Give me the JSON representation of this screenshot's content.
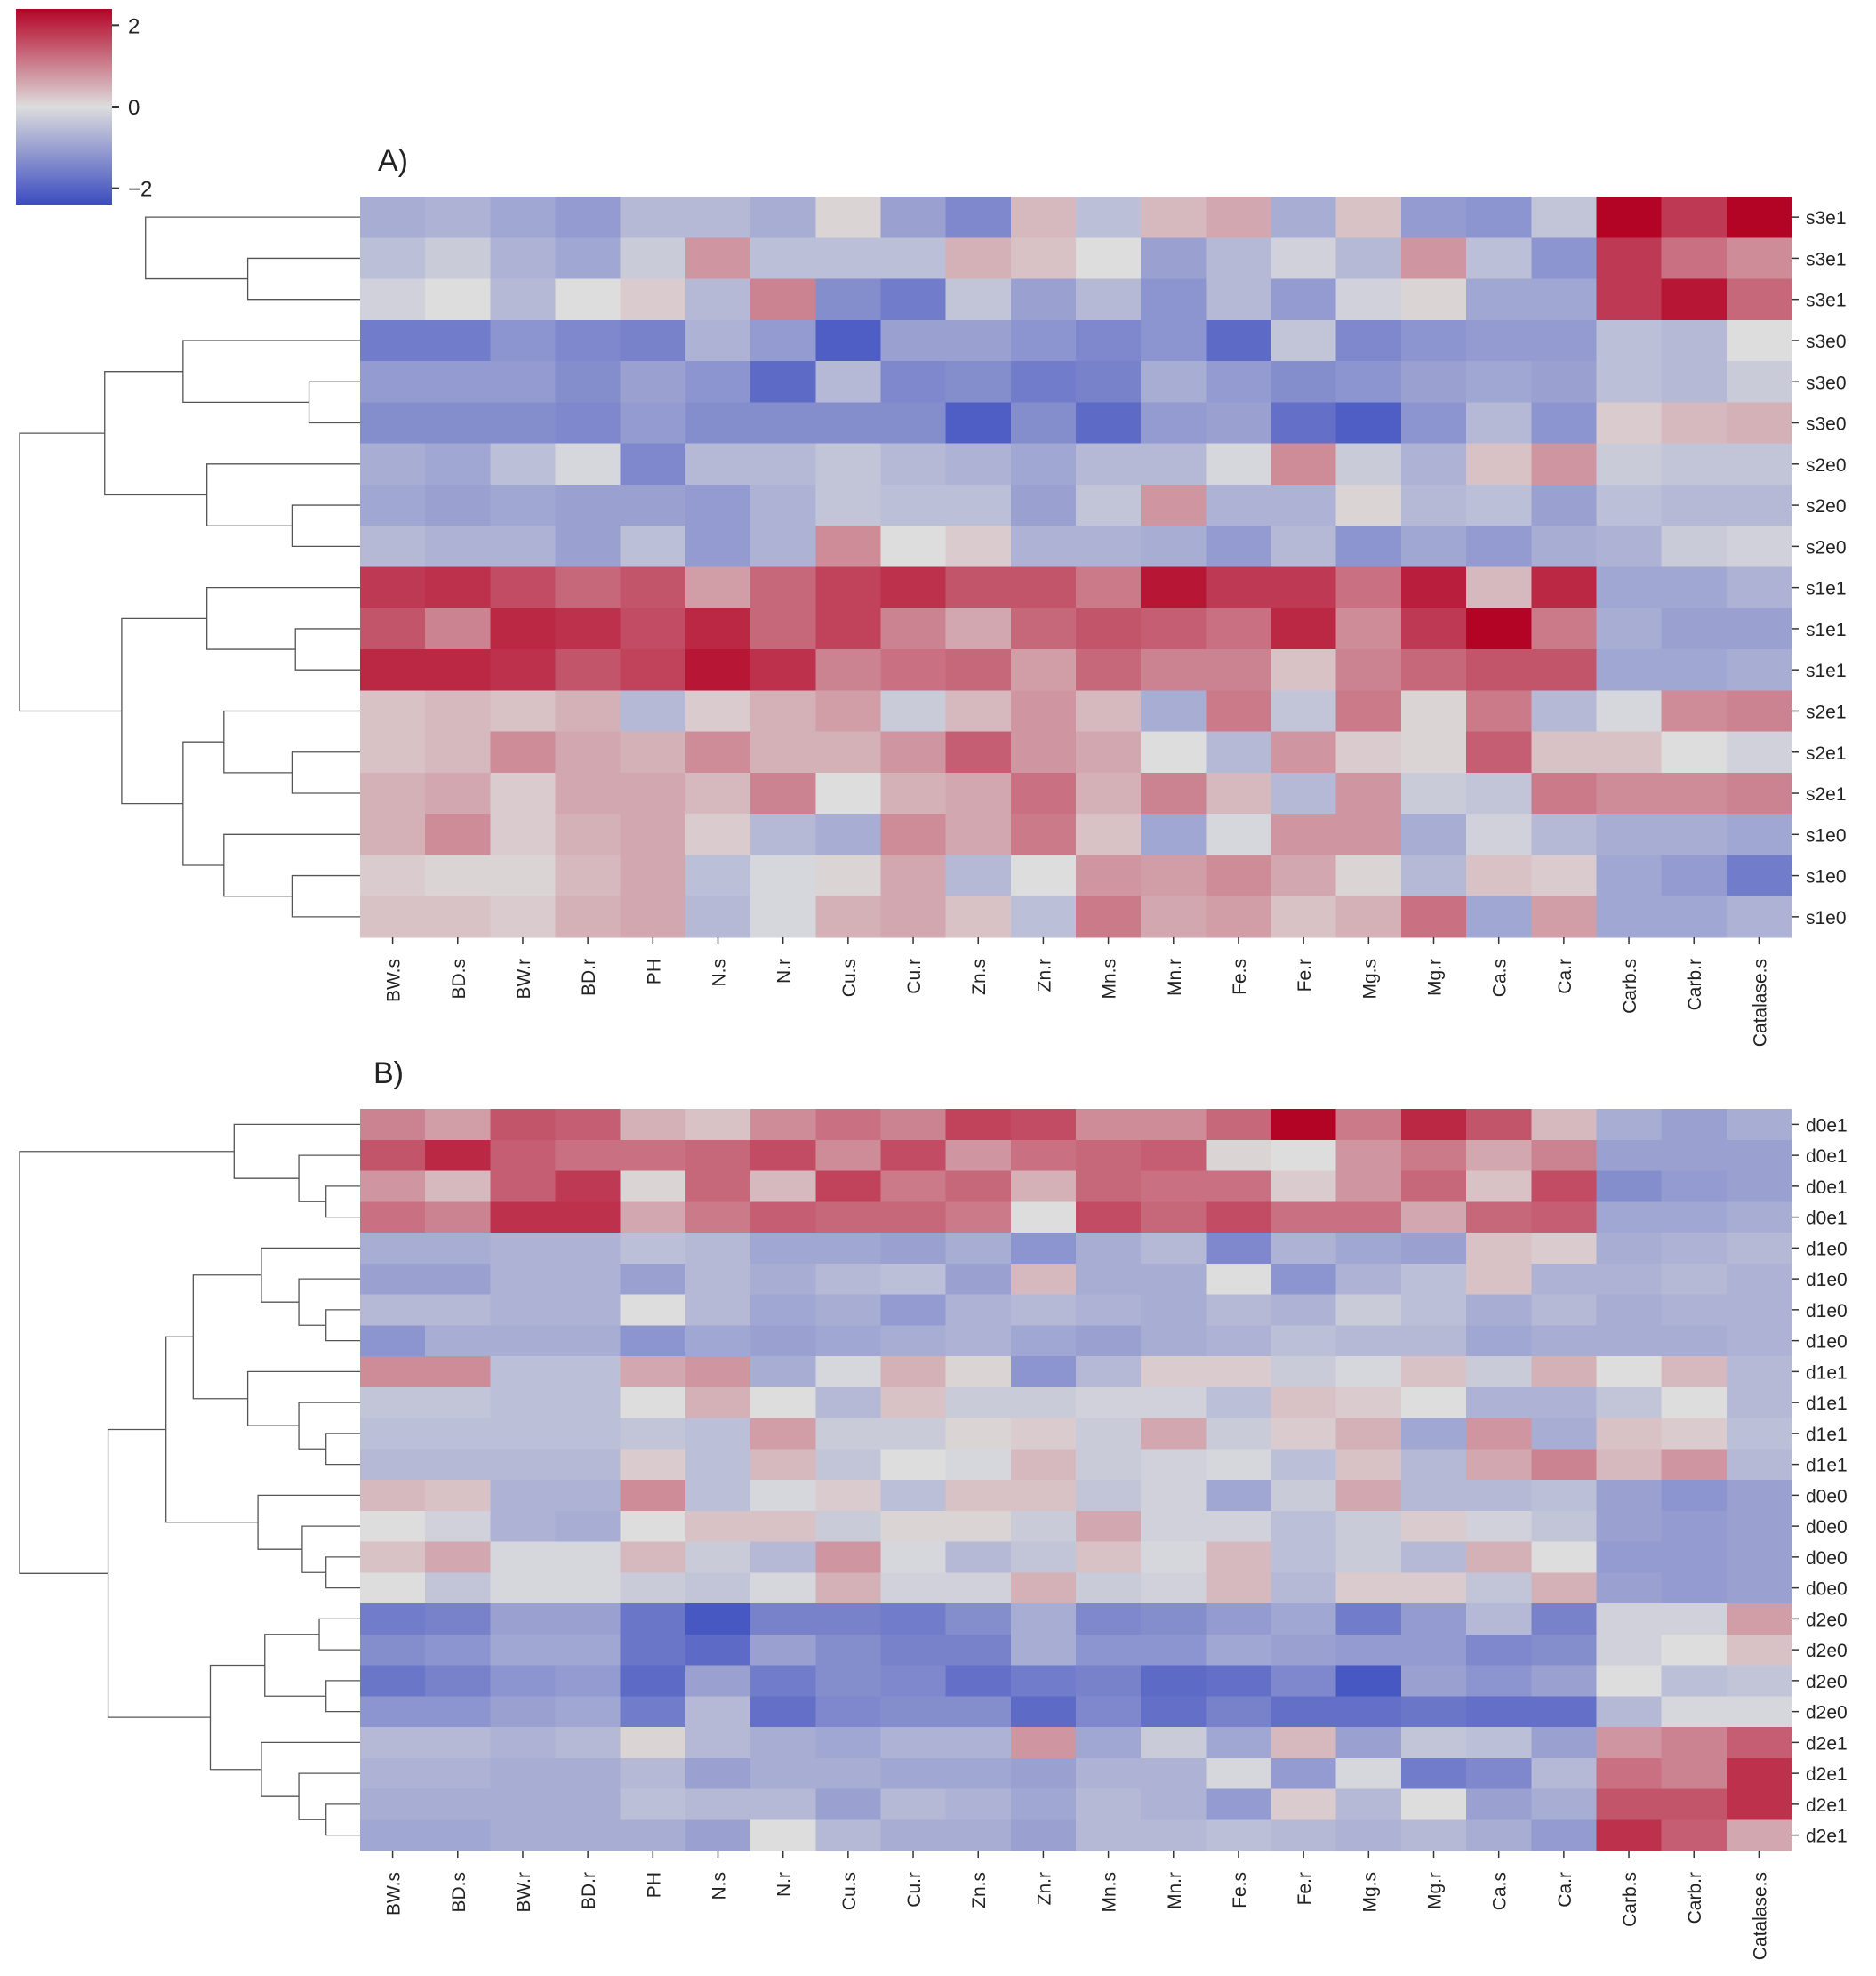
{
  "colorbar": {
    "ticks": [
      2,
      0,
      -2
    ],
    "tick_labels": [
      "2",
      "0",
      "−2"
    ],
    "range": [
      -2.4,
      2.4
    ],
    "colors": {
      "min": "#3b4cc0",
      "mid": "#dddddd",
      "max": "#b40426"
    }
  },
  "chart_data": [
    {
      "type": "heatmap",
      "title": "A)",
      "columns": [
        "BW.s",
        "BD.s",
        "BW.r",
        "BD.r",
        "PH",
        "N.s",
        "N.r",
        "Cu.s",
        "Cu.r",
        "Zn.s",
        "Zn.r",
        "Mn.s",
        "Mn.r",
        "Fe.s",
        "Fe.r",
        "Mg.s",
        "Mg.r",
        "Ca.s",
        "Ca.r",
        "Carb.s",
        "Carb.r",
        "Catalase.s"
      ],
      "rows": [
        "s3e1",
        "s3e1",
        "s3e1",
        "s3e0",
        "s3e0",
        "s3e0",
        "s2e0",
        "s2e0",
        "s2e0",
        "s1e1",
        "s1e1",
        "s1e1",
        "s2e1",
        "s2e1",
        "s2e1",
        "s1e0",
        "s1e0",
        "s1e0"
      ],
      "values": [
        [
          -0.8,
          -0.7,
          -0.9,
          -1.1,
          -0.6,
          -0.6,
          -0.8,
          0.1,
          -1.0,
          -1.4,
          0.4,
          -0.5,
          0.4,
          0.6,
          -0.8,
          0.3,
          -1.1,
          -1.2,
          -0.4,
          2.4,
          1.8,
          2.4
        ],
        [
          -0.5,
          -0.3,
          -0.7,
          -0.9,
          -0.3,
          0.8,
          -0.5,
          -0.5,
          -0.5,
          0.5,
          0.3,
          0.0,
          -1.0,
          -0.6,
          -0.2,
          -0.6,
          0.8,
          -0.5,
          -1.2,
          1.8,
          1.2,
          0.9
        ],
        [
          -0.2,
          0.0,
          -0.6,
          0.0,
          0.2,
          -0.6,
          1.0,
          -1.3,
          -1.6,
          -0.4,
          -1.0,
          -0.6,
          -1.2,
          -0.6,
          -1.1,
          -0.2,
          0.1,
          -0.9,
          -0.9,
          1.8,
          2.2,
          1.3
        ],
        [
          -1.6,
          -1.6,
          -1.2,
          -1.4,
          -1.5,
          -0.7,
          -1.1,
          -2.1,
          -1.0,
          -1.0,
          -1.2,
          -1.4,
          -1.2,
          -1.9,
          -0.4,
          -1.4,
          -1.2,
          -1.1,
          -1.1,
          -0.5,
          -0.6,
          0.0
        ],
        [
          -1.1,
          -1.1,
          -1.1,
          -1.3,
          -1.0,
          -1.2,
          -1.9,
          -0.6,
          -1.4,
          -1.3,
          -1.6,
          -1.5,
          -0.8,
          -1.1,
          -1.3,
          -1.2,
          -1.0,
          -0.9,
          -1.0,
          -0.5,
          -0.6,
          -0.3
        ],
        [
          -1.3,
          -1.3,
          -1.3,
          -1.4,
          -1.1,
          -1.3,
          -1.3,
          -1.3,
          -1.3,
          -2.1,
          -1.3,
          -1.9,
          -1.1,
          -1.0,
          -1.8,
          -2.1,
          -1.2,
          -0.6,
          -1.2,
          0.2,
          0.4,
          0.5
        ],
        [
          -0.8,
          -0.9,
          -0.5,
          -0.1,
          -1.4,
          -0.6,
          -0.6,
          -0.4,
          -0.6,
          -0.7,
          -0.9,
          -0.6,
          -0.6,
          -0.1,
          0.9,
          -0.3,
          -0.7,
          0.3,
          0.8,
          -0.3,
          -0.4,
          -0.4
        ],
        [
          -0.9,
          -1.0,
          -0.9,
          -1.0,
          -1.0,
          -1.1,
          -0.7,
          -0.4,
          -0.5,
          -0.5,
          -1.0,
          -0.4,
          0.8,
          -0.7,
          -0.7,
          0.1,
          -0.6,
          -0.5,
          -1.0,
          -0.5,
          -0.6,
          -0.6
        ],
        [
          -0.6,
          -0.7,
          -0.7,
          -1.0,
          -0.5,
          -1.1,
          -0.7,
          0.9,
          0.0,
          0.2,
          -0.7,
          -0.7,
          -0.8,
          -1.1,
          -0.6,
          -1.2,
          -0.9,
          -1.1,
          -0.8,
          -0.7,
          -0.3,
          -0.2
        ],
        [
          1.8,
          1.9,
          1.6,
          1.3,
          1.5,
          0.7,
          1.3,
          1.7,
          1.9,
          1.5,
          1.5,
          1.1,
          2.2,
          1.8,
          1.8,
          1.2,
          2.1,
          0.4,
          2.0,
          -0.9,
          -0.9,
          -0.7
        ],
        [
          1.5,
          1.0,
          2.0,
          1.9,
          1.6,
          2.0,
          1.3,
          1.7,
          1.0,
          0.6,
          1.3,
          1.5,
          1.4,
          1.2,
          2.0,
          0.9,
          1.8,
          2.4,
          1.1,
          -0.8,
          -1.0,
          -1.0
        ],
        [
          2.0,
          2.0,
          1.9,
          1.5,
          1.7,
          2.2,
          1.9,
          1.0,
          1.2,
          1.3,
          0.7,
          1.3,
          1.0,
          1.0,
          0.3,
          1.0,
          1.3,
          1.5,
          1.5,
          -0.9,
          -0.9,
          -0.8
        ],
        [
          0.3,
          0.4,
          0.3,
          0.5,
          -0.6,
          0.2,
          0.5,
          0.7,
          -0.3,
          0.4,
          0.8,
          0.4,
          -0.8,
          1.1,
          -0.4,
          1.1,
          0.1,
          1.1,
          -0.6,
          -0.1,
          0.9,
          1.0
        ],
        [
          0.3,
          0.4,
          0.9,
          0.6,
          0.5,
          0.9,
          0.5,
          0.5,
          0.8,
          1.4,
          0.8,
          0.6,
          0.0,
          -0.6,
          0.8,
          0.2,
          0.1,
          1.4,
          0.3,
          0.3,
          0.0,
          -0.2
        ],
        [
          0.5,
          0.6,
          0.2,
          0.6,
          0.6,
          0.4,
          1.0,
          0.0,
          0.5,
          0.6,
          1.2,
          0.5,
          1.0,
          0.4,
          -0.6,
          0.8,
          -0.3,
          -0.4,
          1.1,
          0.9,
          0.9,
          1.0
        ],
        [
          0.5,
          0.9,
          0.2,
          0.5,
          0.6,
          0.2,
          -0.6,
          -0.8,
          0.9,
          0.6,
          1.1,
          0.3,
          -0.9,
          -0.1,
          0.8,
          0.8,
          -0.8,
          -0.2,
          -0.6,
          -0.8,
          -0.8,
          -0.9
        ],
        [
          0.2,
          0.1,
          0.1,
          0.4,
          0.6,
          -0.5,
          -0.1,
          0.1,
          0.6,
          -0.6,
          0.0,
          0.8,
          0.7,
          0.9,
          0.6,
          0.1,
          -0.6,
          0.3,
          0.2,
          -0.9,
          -1.1,
          -1.6
        ],
        [
          0.3,
          0.3,
          0.2,
          0.5,
          0.6,
          -0.6,
          -0.1,
          0.5,
          0.6,
          0.3,
          -0.5,
          1.1,
          0.6,
          0.7,
          0.3,
          0.5,
          1.2,
          -0.9,
          0.7,
          -0.9,
          -0.9,
          -0.7
        ]
      ]
    },
    {
      "type": "heatmap",
      "title": "B)",
      "columns": [
        "BW.s",
        "BD.s",
        "BW.r",
        "BD.r",
        "PH",
        "N.s",
        "N.r",
        "Cu.s",
        "Cu.r",
        "Zn.s",
        "Zn.r",
        "Mn.s",
        "Mn.r",
        "Fe.s",
        "Fe.r",
        "Mg.s",
        "Mg.r",
        "Ca.s",
        "Ca.r",
        "Carb.s",
        "Carb.r",
        "Catalase.s"
      ],
      "rows": [
        "d0e1",
        "d0e1",
        "d0e1",
        "d0e1",
        "d1e0",
        "d1e0",
        "d1e0",
        "d1e0",
        "d1e1",
        "d1e1",
        "d1e1",
        "d1e1",
        "d0e0",
        "d0e0",
        "d0e0",
        "d0e0",
        "d2e0",
        "d2e0",
        "d2e0",
        "d2e0",
        "d2e1",
        "d2e1",
        "d2e1",
        "d2e1"
      ],
      "values": [
        [
          1.0,
          0.7,
          1.5,
          1.4,
          0.5,
          0.3,
          0.9,
          1.2,
          1.0,
          1.7,
          1.6,
          0.9,
          0.9,
          1.3,
          2.4,
          1.1,
          2.0,
          1.5,
          0.4,
          -0.8,
          -1.0,
          -0.8
        ],
        [
          1.5,
          2.0,
          1.4,
          1.2,
          1.2,
          1.3,
          1.6,
          0.9,
          1.6,
          0.8,
          1.2,
          1.3,
          1.4,
          0.1,
          0.0,
          0.8,
          1.1,
          0.6,
          1.0,
          -1.0,
          -1.0,
          -1.0
        ],
        [
          0.8,
          0.4,
          1.4,
          1.8,
          0.1,
          1.3,
          0.4,
          1.7,
          1.1,
          1.3,
          0.5,
          1.3,
          1.2,
          1.2,
          0.2,
          0.8,
          1.3,
          0.3,
          1.6,
          -1.3,
          -1.1,
          -1.0
        ],
        [
          1.2,
          1.0,
          1.9,
          1.9,
          0.6,
          1.1,
          1.4,
          1.3,
          1.3,
          1.1,
          0.0,
          1.6,
          1.3,
          1.6,
          1.2,
          1.2,
          0.6,
          1.3,
          1.4,
          -0.9,
          -0.9,
          -0.8
        ],
        [
          -0.8,
          -0.8,
          -0.7,
          -0.7,
          -0.5,
          -0.6,
          -0.9,
          -0.9,
          -1.0,
          -0.8,
          -1.2,
          -0.8,
          -0.6,
          -1.4,
          -0.7,
          -0.9,
          -1.0,
          0.3,
          0.2,
          -0.8,
          -0.7,
          -0.6
        ],
        [
          -1.0,
          -1.0,
          -0.7,
          -0.7,
          -1.0,
          -0.6,
          -0.8,
          -0.6,
          -0.5,
          -1.0,
          0.4,
          -0.8,
          -0.8,
          0.0,
          -1.2,
          -0.7,
          -0.5,
          0.3,
          -0.7,
          -0.7,
          -0.6,
          -0.7
        ],
        [
          -0.6,
          -0.6,
          -0.7,
          -0.7,
          0.0,
          -0.6,
          -0.9,
          -0.8,
          -1.1,
          -0.7,
          -0.6,
          -0.7,
          -0.8,
          -0.6,
          -0.7,
          -0.3,
          -0.5,
          -0.8,
          -0.6,
          -0.8,
          -0.7,
          -0.7
        ],
        [
          -1.2,
          -0.8,
          -0.8,
          -0.8,
          -1.2,
          -0.9,
          -1.0,
          -0.9,
          -0.8,
          -0.7,
          -0.9,
          -1.0,
          -0.8,
          -0.7,
          -0.5,
          -0.6,
          -0.6,
          -0.9,
          -0.8,
          -0.8,
          -0.8,
          -0.7
        ],
        [
          0.9,
          0.9,
          -0.5,
          -0.5,
          0.6,
          0.8,
          -0.8,
          -0.1,
          0.5,
          0.1,
          -1.2,
          -0.6,
          0.2,
          0.2,
          -0.3,
          -0.1,
          0.3,
          -0.3,
          0.5,
          0.0,
          0.4,
          -0.6
        ],
        [
          -0.4,
          -0.4,
          -0.5,
          -0.5,
          0.0,
          0.5,
          0.0,
          -0.6,
          0.3,
          -0.3,
          -0.3,
          -0.2,
          -0.2,
          -0.5,
          0.3,
          0.2,
          0.0,
          -0.7,
          -0.7,
          -0.4,
          0.0,
          -0.6
        ],
        [
          -0.5,
          -0.5,
          -0.5,
          -0.5,
          -0.4,
          -0.5,
          0.7,
          -0.3,
          -0.3,
          0.1,
          0.2,
          -0.3,
          0.6,
          -0.3,
          0.2,
          0.5,
          -0.9,
          0.8,
          -0.8,
          0.3,
          0.2,
          -0.5
        ],
        [
          -0.6,
          -0.6,
          -0.6,
          -0.6,
          0.2,
          -0.5,
          0.4,
          -0.4,
          0.0,
          -0.1,
          0.4,
          -0.3,
          -0.2,
          -0.1,
          -0.5,
          0.3,
          -0.6,
          0.6,
          1.0,
          0.4,
          0.8,
          -0.6
        ],
        [
          0.4,
          0.3,
          -0.7,
          -0.7,
          0.9,
          -0.5,
          -0.1,
          0.2,
          -0.5,
          0.3,
          0.3,
          -0.4,
          -0.2,
          -0.9,
          -0.3,
          0.6,
          -0.6,
          -0.6,
          -0.5,
          -1.0,
          -1.2,
          -1.0
        ],
        [
          0.0,
          -0.2,
          -0.7,
          -0.8,
          0.0,
          0.3,
          0.3,
          -0.3,
          0.1,
          0.1,
          -0.3,
          0.6,
          -0.2,
          -0.2,
          -0.5,
          -0.3,
          0.2,
          -0.2,
          -0.4,
          -1.0,
          -1.1,
          -1.0
        ],
        [
          0.3,
          0.6,
          -0.1,
          -0.1,
          0.4,
          -0.3,
          -0.6,
          0.8,
          -0.1,
          -0.6,
          -0.4,
          0.3,
          -0.1,
          0.4,
          -0.5,
          -0.3,
          -0.6,
          0.5,
          0.0,
          -1.1,
          -1.1,
          -1.0
        ],
        [
          0.0,
          -0.4,
          -0.1,
          -0.1,
          -0.3,
          -0.4,
          -0.1,
          0.5,
          -0.2,
          -0.2,
          0.5,
          -0.3,
          -0.2,
          0.4,
          -0.6,
          0.2,
          0.2,
          -0.4,
          0.5,
          -1.0,
          -1.1,
          -1.0
        ],
        [
          -1.6,
          -1.5,
          -1.0,
          -1.0,
          -1.7,
          -2.2,
          -1.5,
          -1.5,
          -1.6,
          -1.3,
          -0.8,
          -1.4,
          -1.3,
          -1.1,
          -0.9,
          -1.6,
          -1.1,
          -0.6,
          -1.5,
          -0.2,
          -0.2,
          0.7
        ],
        [
          -1.3,
          -1.2,
          -0.9,
          -0.9,
          -1.7,
          -1.9,
          -1.0,
          -1.3,
          -1.5,
          -1.5,
          -0.8,
          -1.2,
          -1.2,
          -0.9,
          -1.0,
          -1.1,
          -1.1,
          -1.4,
          -1.3,
          -0.2,
          0.0,
          0.3
        ],
        [
          -1.7,
          -1.5,
          -1.2,
          -1.1,
          -1.9,
          -1.0,
          -1.6,
          -1.3,
          -1.4,
          -1.8,
          -1.6,
          -1.5,
          -1.9,
          -1.8,
          -1.4,
          -2.2,
          -1.0,
          -1.2,
          -1.0,
          0.0,
          -0.5,
          -0.4
        ],
        [
          -1.2,
          -1.2,
          -1.0,
          -0.9,
          -1.6,
          -0.6,
          -1.8,
          -1.4,
          -1.3,
          -1.3,
          -1.9,
          -1.4,
          -1.8,
          -1.5,
          -1.8,
          -1.8,
          -1.7,
          -1.8,
          -1.8,
          -0.6,
          -0.1,
          -0.1
        ],
        [
          -0.6,
          -0.6,
          -0.7,
          -0.6,
          0.1,
          -0.6,
          -0.8,
          -0.9,
          -0.7,
          -0.7,
          0.8,
          -0.9,
          -0.3,
          -0.9,
          0.4,
          -1.0,
          -0.4,
          -0.5,
          -1.0,
          0.8,
          1.0,
          1.4
        ],
        [
          -0.7,
          -0.7,
          -0.8,
          -0.8,
          -0.6,
          -1.0,
          -0.8,
          -0.8,
          -0.9,
          -0.9,
          -1.0,
          -0.7,
          -0.7,
          -0.1,
          -1.1,
          -0.1,
          -1.6,
          -1.4,
          -0.6,
          1.2,
          1.0,
          1.9
        ],
        [
          -0.8,
          -0.8,
          -0.8,
          -0.8,
          -0.5,
          -0.6,
          -0.6,
          -1.0,
          -0.6,
          -0.7,
          -0.9,
          -0.6,
          -0.7,
          -1.1,
          0.2,
          -0.6,
          0.0,
          -1.0,
          -0.8,
          1.5,
          1.5,
          1.9
        ],
        [
          -0.9,
          -0.9,
          -0.8,
          -0.8,
          -0.8,
          -1.0,
          0.0,
          -0.6,
          -0.8,
          -0.8,
          -1.0,
          -0.6,
          -0.6,
          -0.5,
          -0.6,
          -0.7,
          -0.6,
          -0.8,
          -1.1,
          1.9,
          1.4,
          0.6
        ]
      ]
    }
  ]
}
